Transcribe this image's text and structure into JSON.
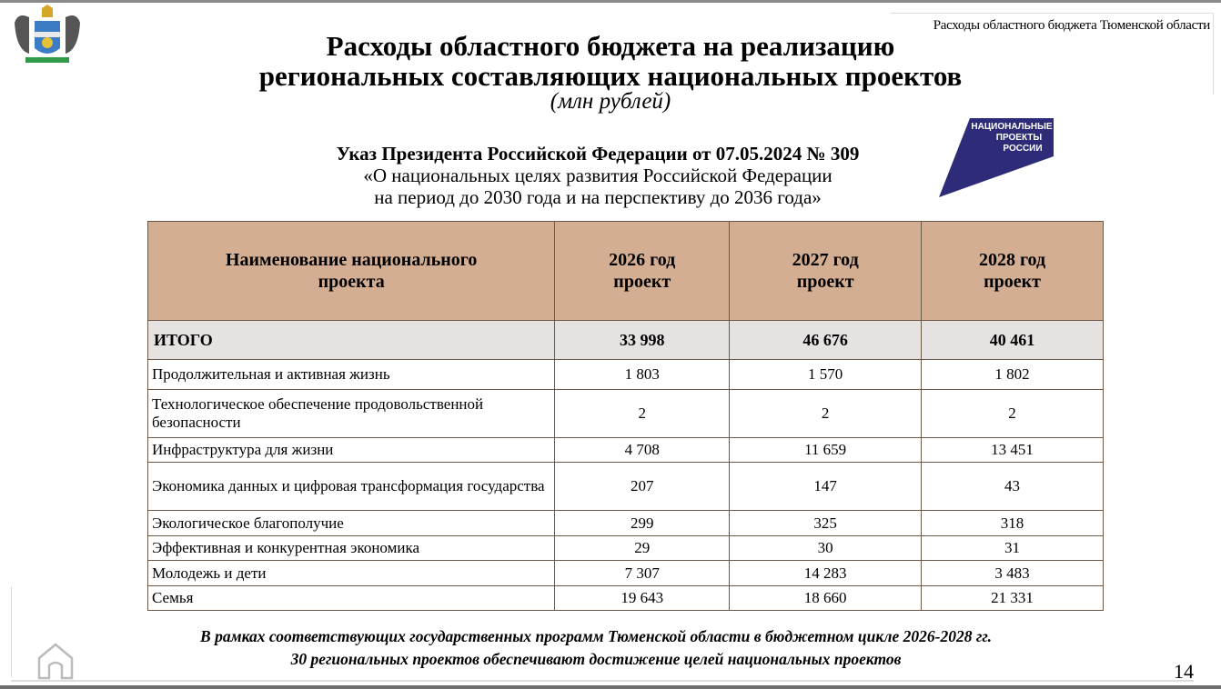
{
  "header": {
    "corner_title": "Расходы областного бюджета Тюменской области",
    "title_line1": "Расходы областного бюджета на реализацию",
    "title_line2": "региональных составляющих национальных проектов",
    "units": "(млн рублей)"
  },
  "decree": {
    "line1": "Указ Президента Российской Федерации от 07.05.2024 № 309",
    "line2": "«О национальных целях развития Российской Федерации",
    "line3": "на период до 2030 года и на перспективу до 2036 года»"
  },
  "logo": {
    "text": "НАЦИОНАЛЬНЫЕ ПРОЕКТЫ РОССИИ",
    "color": "#2e2c79"
  },
  "table": {
    "headers": [
      "Наименование национального проекта",
      "2026 год проект",
      "2027 год проект",
      "2028 год проект"
    ],
    "total": {
      "name": "ИТОГО",
      "values": [
        "33 998",
        "46 676",
        "40 461"
      ]
    },
    "rows": [
      {
        "name": "Продолжительная и активная жизнь",
        "values": [
          "1 803",
          "1 570",
          "1 802"
        ]
      },
      {
        "name": "Технологическое обеспечение продовольственной безопасности",
        "values": [
          "2",
          "2",
          "2"
        ]
      },
      {
        "name": "Инфраструктура для жизни",
        "values": [
          "4 708",
          "11 659",
          "13 451"
        ]
      },
      {
        "name": "Экономика данных и цифровая трансформация государства",
        "values": [
          "207",
          "147",
          "43"
        ]
      },
      {
        "name": "Экологическое благополучие",
        "values": [
          "299",
          "325",
          "318"
        ]
      },
      {
        "name": "Эффективная и конкурентная экономика",
        "values": [
          "29",
          "30",
          "31"
        ]
      },
      {
        "name": "Молодежь и дети",
        "values": [
          "7 307",
          "14 283",
          "3 483"
        ]
      },
      {
        "name": "Семья",
        "values": [
          "19 643",
          "18 660",
          "21 331"
        ]
      }
    ]
  },
  "footer": {
    "line1": "В рамках соответствующих государственных программ Тюменской области в бюджетном цикле 2026-2028 гг.",
    "line2": "30 региональных проектов обеспечивают достижение целей национальных проектов"
  },
  "page_number": "14",
  "colors": {
    "header_bg": "#d4ae93",
    "total_bg": "#e7e2e2",
    "border": "#6b5a48"
  }
}
